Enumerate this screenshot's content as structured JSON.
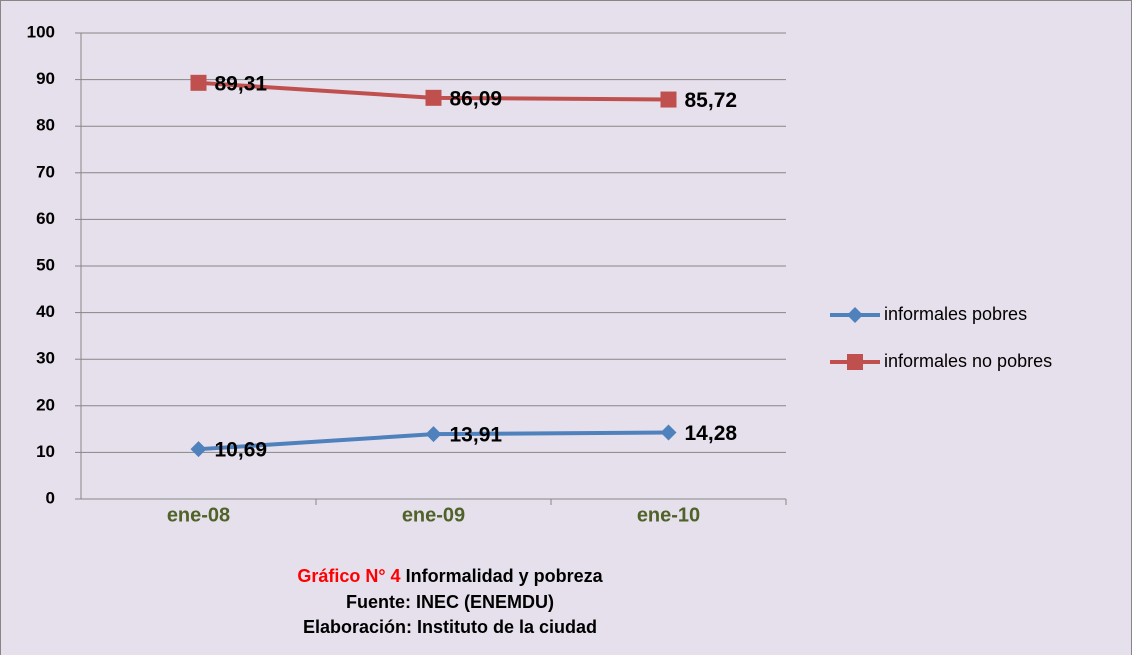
{
  "chart_data": {
    "type": "line",
    "categories": [
      "ene-08",
      "ene-09",
      "ene-10"
    ],
    "series": [
      {
        "name": "informales pobres",
        "color": "#4f81bd",
        "marker": "diamond",
        "values": [
          10.69,
          13.91,
          14.28
        ],
        "value_labels": [
          "10,69",
          "13,91",
          "14,28"
        ]
      },
      {
        "name": "informales no pobres",
        "color": "#c0504d",
        "marker": "square",
        "values": [
          89.31,
          86.09,
          85.72
        ],
        "value_labels": [
          "89,31",
          "86,09",
          "85,72"
        ]
      }
    ],
    "ylim": [
      0,
      100
    ],
    "yticks": [
      0,
      10,
      20,
      30,
      40,
      50,
      60,
      70,
      80,
      90,
      100
    ],
    "grid": true,
    "legend": "right",
    "caption": {
      "label": "Gráfico N° 4",
      "title": "Informalidad y pobreza",
      "source": "Fuente: INEC (ENEMDU)",
      "credit": "Elaboración: Instituto de la ciudad"
    }
  }
}
